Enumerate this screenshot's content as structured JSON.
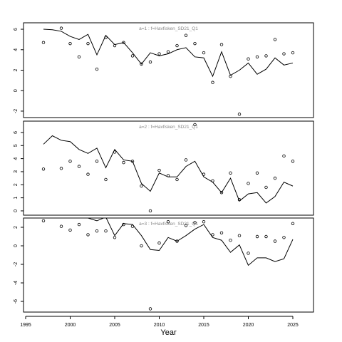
{
  "chart_data": [
    {
      "type": "line",
      "title": "a=1  :  f=Havfisken_SD21_Q1",
      "x": [
        1997,
        1998,
        1999,
        2000,
        2001,
        2002,
        2003,
        2004,
        2005,
        2006,
        2007,
        2008,
        2009,
        2010,
        2011,
        2012,
        2013,
        2014,
        2015,
        2016,
        2017,
        2018,
        2019,
        2020,
        2021,
        2022,
        2023,
        2024,
        2025
      ],
      "series": [
        {
          "style": "line",
          "color": "#000000",
          "values": [
            6.0,
            5.95,
            5.8,
            5.3,
            5.0,
            5.5,
            3.5,
            5.4,
            4.5,
            4.7,
            3.7,
            2.6,
            3.7,
            3.4,
            3.6,
            4.0,
            4.2,
            3.3,
            3.2,
            1.4,
            3.8,
            1.5,
            2.0,
            2.7,
            1.6,
            2.1,
            3.2,
            2.5,
            2.7
          ]
        },
        {
          "style": "points",
          "color": "#000000",
          "values": [
            4.7,
            null,
            6.1,
            4.6,
            3.3,
            4.6,
            2.1,
            5.2,
            4.4,
            4.7,
            3.4,
            2.6,
            2.8,
            3.6,
            3.8,
            4.4,
            5.4,
            4.6,
            3.7,
            0.8,
            4.5,
            1.4,
            -2.3,
            3.1,
            3.3,
            3.4,
            5.0,
            3.6,
            3.7
          ]
        }
      ],
      "xlim": [
        1994.76,
        2027.32
      ],
      "ylim": [
        -2.63,
        6.63
      ],
      "yticks": [
        -2,
        0,
        2,
        4,
        6
      ]
    },
    {
      "type": "line",
      "title": "a=2  :  f=Havfisken_SD21_Q1",
      "x": [
        1997,
        1998,
        1999,
        2000,
        2001,
        2002,
        2003,
        2004,
        2005,
        2006,
        2007,
        2008,
        2009,
        2010,
        2011,
        2012,
        2013,
        2014,
        2015,
        2016,
        2017,
        2018,
        2019,
        2020,
        2021,
        2022,
        2023,
        2024,
        2025
      ],
      "series": [
        {
          "style": "line",
          "color": "#000000",
          "values": [
            5.1,
            5.75,
            5.4,
            5.3,
            4.7,
            4.4,
            4.8,
            3.3,
            4.7,
            3.9,
            3.8,
            2.1,
            1.5,
            2.9,
            2.6,
            2.6,
            3.4,
            3.8,
            2.6,
            2.2,
            1.4,
            2.5,
            0.75,
            1.3,
            1.4,
            0.6,
            1.1,
            2.2,
            1.9
          ]
        },
        {
          "style": "points",
          "color": "#000000",
          "values": [
            3.2,
            null,
            3.25,
            3.8,
            3.4,
            2.8,
            3.8,
            2.4,
            4.5,
            3.7,
            3.8,
            1.9,
            0.0,
            3.1,
            2.7,
            2.4,
            3.9,
            6.6,
            2.8,
            2.3,
            1.4,
            2.9,
            0.85,
            2.1,
            2.9,
            1.8,
            2.5,
            4.2,
            3.8
          ]
        }
      ],
      "xlim": [
        1994.76,
        2027.32
      ],
      "ylim": [
        -0.33,
        6.87
      ],
      "yticks": [
        0,
        1,
        2,
        3,
        4,
        5,
        6
      ]
    },
    {
      "type": "line",
      "title": "a=3  :  f=Havfisken_SD21_Q1",
      "xlabel": "Year",
      "x": [
        1997,
        1998,
        1999,
        2000,
        2001,
        2002,
        2003,
        2004,
        2005,
        2006,
        2007,
        2008,
        2009,
        2010,
        2011,
        2012,
        2013,
        2014,
        2015,
        2016,
        2017,
        2018,
        2019,
        2020,
        2021,
        2022,
        2023,
        2024,
        2025
      ],
      "series": [
        {
          "style": "line",
          "color": "#000000",
          "values": [
            null,
            null,
            null,
            null,
            null,
            3.0,
            2.7,
            3.1,
            1.1,
            2.4,
            2.3,
            1.1,
            -0.4,
            -0.5,
            0.9,
            0.5,
            1.1,
            1.8,
            2.3,
            0.9,
            0.6,
            -0.7,
            0.1,
            -2.1,
            -1.3,
            -1.3,
            -1.7,
            -1.4,
            0.7
          ]
        },
        {
          "style": "points",
          "color": "#000000",
          "values": [
            2.7,
            null,
            2.1,
            1.7,
            2.3,
            1.2,
            1.6,
            1.6,
            0.9,
            2.3,
            2.1,
            0.0,
            -6.8,
            0.3,
            2.6,
            0.5,
            2.2,
            2.5,
            2.6,
            1.2,
            1.4,
            0.6,
            1.1,
            -0.8,
            1.0,
            1.0,
            0.5,
            0.9,
            2.4
          ]
        }
      ],
      "xlim": [
        1994.76,
        2027.32
      ],
      "ylim": [
        -7.15,
        3.0
      ],
      "yticks": [
        -6,
        -4,
        -2,
        0,
        2
      ],
      "xticks": [
        1995,
        2000,
        2005,
        2010,
        2015,
        2020,
        2025
      ]
    }
  ]
}
